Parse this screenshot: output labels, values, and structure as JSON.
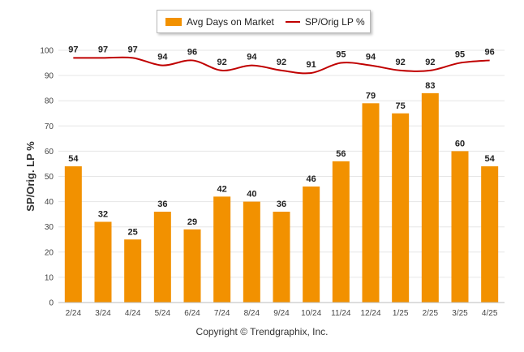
{
  "legend": {
    "bar_label": "Avg Days on Market",
    "line_label": "SP/Orig LP %"
  },
  "copyright": "Copyright © Trendgraphix, Inc.",
  "colors": {
    "bar": "#f29100",
    "line": "#c00000",
    "grid": "#e6e6e6"
  },
  "chart_data": {
    "type": "bar",
    "ylabel": "SP/Orig. LP %",
    "ylim": [
      0,
      100
    ],
    "yticks": [
      0,
      10,
      20,
      30,
      40,
      50,
      60,
      70,
      80,
      90,
      100
    ],
    "categories": [
      "2/24",
      "3/24",
      "4/24",
      "5/24",
      "6/24",
      "7/24",
      "8/24",
      "9/24",
      "10/24",
      "11/24",
      "12/24",
      "1/25",
      "2/25",
      "3/25",
      "4/25"
    ],
    "series": [
      {
        "name": "Avg Days on Market",
        "type": "bar",
        "values": [
          54,
          32,
          25,
          36,
          29,
          42,
          40,
          36,
          46,
          56,
          79,
          75,
          83,
          60,
          54
        ]
      },
      {
        "name": "SP/Orig LP %",
        "type": "line",
        "values": [
          97,
          97,
          97,
          94,
          96,
          92,
          94,
          92,
          91,
          95,
          94,
          92,
          92,
          95,
          96
        ]
      }
    ],
    "grid": true,
    "legend_position": "top-center"
  }
}
